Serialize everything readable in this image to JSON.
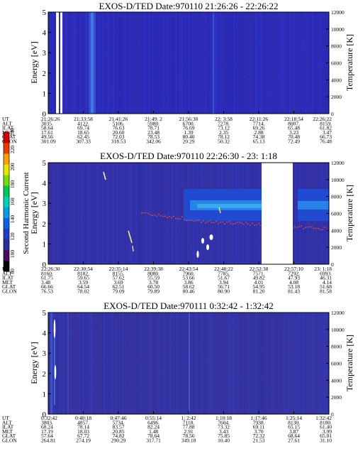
{
  "colorbar": {
    "label": "Second Harmonic Current",
    "ticks": [
      "80",
      "100",
      "120",
      "140",
      "160",
      "180",
      "200",
      "220",
      "240"
    ],
    "colors": [
      "#000000",
      "#4b0a5a",
      "#2d2d9a",
      "#1e3cc8",
      "#0b62e6",
      "#00a0e6",
      "#00d2b4",
      "#00c850",
      "#78dc00",
      "#e6e600",
      "#f5a000",
      "#e63c00",
      "#d20000"
    ]
  },
  "chart_data": [
    {
      "type": "heatmap",
      "title": "EXOS-D/TED   Date:970110  21:26:26 - 22:26:22",
      "ylabel": "Energy [eV]",
      "ylabel_right": "Temperature [K]",
      "ylim": [
        0,
        5
      ],
      "ylim_right": [
        0,
        12000
      ],
      "yticks": [
        "0",
        "1",
        "2",
        "3",
        "4",
        "5"
      ],
      "yticks_right": [
        "0",
        "2000",
        "4000",
        "6000",
        "8000",
        "10000",
        "12000"
      ],
      "background": "#2a2ac2",
      "gaps": [
        [
          0.06,
          0.09
        ],
        [
          0.115,
          0.14
        ]
      ],
      "features": [],
      "ephemeris": {
        "labels": [
          "UT",
          "ALT",
          "ILAT",
          "MLT",
          "GLAT",
          "GLON"
        ],
        "columns": [
          [
            "21:26:26",
            "3035.",
            "58.64",
            "17.61",
            "49.56",
            "301.09"
          ],
          [
            "21:33:58",
            "4122.",
            "69.74",
            "18.65",
            "62.45",
            "307.33"
          ],
          [
            "21:41:26",
            "5106.",
            "76.63",
            "20.60",
            "72.03",
            "318.53"
          ],
          [
            "21:49: 2",
            "5980.",
            "78.71",
            "23.48",
            "78.53",
            "342.06"
          ],
          [
            "21:56:30",
            "6700.",
            "76.69",
            "1.39",
            "80.40",
            "20.29"
          ],
          [
            "22: 3:58",
            "7278.",
            "73.12",
            "2.35",
            "78.12",
            "50.32"
          ],
          [
            "22:11:26",
            "7714.",
            "69.26",
            "2.88",
            "74.38",
            "65.13"
          ],
          [
            "22:18:54",
            "8007.",
            "65.48",
            "3.23",
            "70.48",
            "72.49"
          ],
          [
            "22:26:22",
            "8159.",
            "61.82",
            "3.47",
            "66.73",
            "76.48"
          ]
        ]
      }
    },
    {
      "type": "heatmap",
      "title": "EXOS-D/TED   Date:970110  22:26:30 - 23: 1:18",
      "ylabel": "Energy [eV]",
      "ylabel_right": "Temperature [K]",
      "ylim": [
        0,
        5
      ],
      "ylim_right": [
        0,
        12000
      ],
      "yticks": [
        "0",
        "1",
        "2",
        "3",
        "4",
        "5"
      ],
      "yticks_right": [
        "0",
        "2000",
        "4000",
        "6000",
        "8000",
        "10000",
        "12000"
      ],
      "background": "#3232a8",
      "gaps": [
        [
          0.745,
          0.855
        ]
      ],
      "features": [
        {
          "kind": "band",
          "x0": 0.51,
          "x1": 0.745,
          "y0": 2.3,
          "y1": 3.4,
          "color": "#1a5ae6"
        },
        {
          "kind": "band",
          "x0": 0.855,
          "x1": 1.0,
          "y0": 2.3,
          "y1": 3.4,
          "color": "#1a5ae6"
        }
      ],
      "ephemeris": {
        "labels": [
          "UT",
          "ALT",
          "ILAT",
          "MLT",
          "GLAT",
          "GLON"
        ],
        "columns": [
          [
            "22:26:30",
            "8160.",
            "61.75",
            "3.48",
            "66.66",
            "76.53"
          ],
          [
            "22:30:54",
            "8182.",
            "59.65",
            "3.59",
            "64.54",
            "78.02"
          ],
          [
            "22:35:14",
            "8155.",
            "57.62",
            "3.69",
            "62.51",
            "79.09"
          ],
          [
            "22:39:38",
            "8080.",
            "55.59",
            "3.78",
            "60.50",
            "79.89"
          ],
          [
            "22:43:54",
            "7960.",
            "53.66",
            "3.86",
            "58.62",
            "80.46"
          ],
          [
            "22:48:22",
            "7785.",
            "51.67",
            "3.94",
            "56.71",
            "80.90"
          ],
          [
            "22:52:38",
            "7571.",
            "49.82",
            "4.01",
            "54.95",
            "81.20"
          ],
          [
            "22:57:10",
            "7292.",
            "47.93",
            "4.08",
            "53.18",
            "81.43"
          ],
          [
            "23: 1:18",
            "6993.",
            "46.31",
            "4.14",
            "51.68",
            "81.58"
          ]
        ]
      }
    },
    {
      "type": "heatmap",
      "title": "EXOS-D/TED   Date:970111   0:32:42 - 1:32:42",
      "ylabel": "Energy [eV]",
      "ylabel_right": "Temperature [K]",
      "ylim": [
        0,
        5
      ],
      "ylim_right": [
        0,
        12000
      ],
      "yticks": [
        "0",
        "1",
        "2",
        "3",
        "4",
        "5"
      ],
      "yticks_right": [
        "0",
        "2000",
        "4000",
        "6000",
        "8000",
        "10000",
        "12000"
      ],
      "background": "#3535a0",
      "gaps": [],
      "features": [],
      "ephemeris": {
        "labels": [
          "UT",
          "ALT",
          "ILAT",
          "MLT",
          "GLAT",
          "GLON"
        ],
        "columns": [
          [
            "0:32:42",
            "3803.",
            "68.24",
            "17.19",
            "57.64",
            "264.81"
          ],
          [
            "0:40:18",
            "4857.",
            "78.14",
            "18.03",
            "67.72",
            "274.19"
          ],
          [
            "0:47:46",
            "5734.",
            "83.57",
            "20.85",
            "74.82",
            "290.29"
          ],
          [
            "0:55:14",
            "6496.",
            "82.24",
            "1.48",
            "78.64",
            "317.71"
          ],
          [
            "1: 2:42",
            "7118.",
            "77.88",
            "2.91",
            "78.56",
            "349.18"
          ],
          [
            "1:10:18",
            "7604.",
            "73.32",
            "3.43",
            "75.85",
            "10.40"
          ],
          [
            "1:17:46",
            "7938.",
            "69.11",
            "3.70",
            "72.32",
            "21.53"
          ],
          [
            "1:25:14",
            "8130.",
            "65.15",
            "3.87",
            "68.64",
            "27.61"
          ],
          [
            "1:32:42",
            "8180.",
            "61.40",
            "3.99",
            "65.01",
            "31.10"
          ]
        ]
      }
    }
  ]
}
